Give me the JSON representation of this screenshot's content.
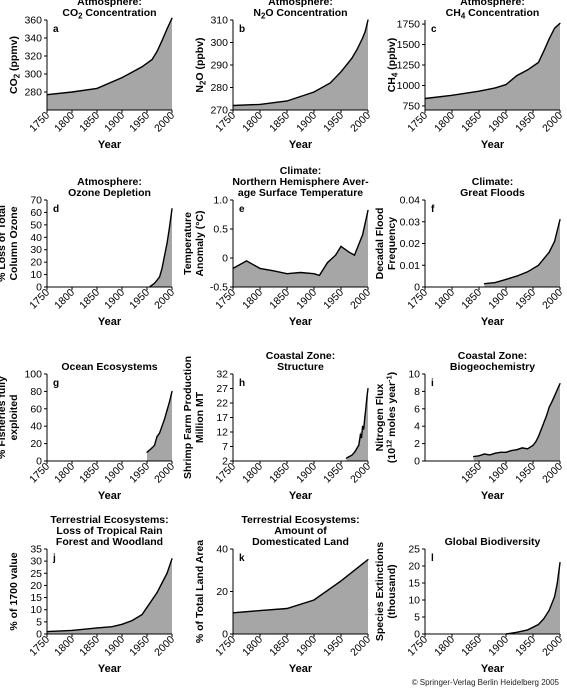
{
  "copyright": "© Springer-Verlag Berlin Heidelberg 2005",
  "colors": {
    "fill": "#a6a6a6",
    "line": "#000000"
  },
  "chart_data": [
    {
      "letter": "a",
      "type": "area",
      "title": [
        "Atmosphere:",
        "CO2 Concentration"
      ],
      "ylabel": [
        "CO2 (ppmv)"
      ],
      "xlabel": "Year",
      "ylim": [
        260,
        360
      ],
      "yticks": [
        280,
        300,
        320,
        340,
        360
      ],
      "xlim": [
        1750,
        2000
      ],
      "xticks": [
        1750,
        1800,
        1850,
        1900,
        1950,
        2000
      ],
      "x": [
        1750,
        1800,
        1850,
        1900,
        1920,
        1940,
        1960,
        1970,
        1980,
        1990,
        2000
      ],
      "y": [
        277,
        280,
        284,
        296,
        302,
        308,
        316,
        325,
        337,
        350,
        362
      ]
    },
    {
      "letter": "b",
      "type": "area",
      "title": [
        "Atmosphere:",
        "N2O Concentration"
      ],
      "ylabel": [
        "N2O (ppbv)"
      ],
      "xlabel": "Year",
      "ylim": [
        270,
        310
      ],
      "yticks": [
        270,
        280,
        290,
        300,
        310
      ],
      "xlim": [
        1750,
        2000
      ],
      "xticks": [
        1750,
        1800,
        1850,
        1900,
        1950,
        2000
      ],
      "x": [
        1750,
        1800,
        1850,
        1900,
        1930,
        1950,
        1970,
        1980,
        1990,
        1995,
        2000
      ],
      "y": [
        272,
        272.5,
        274,
        278,
        282,
        287,
        293,
        297,
        302,
        305,
        310
      ]
    },
    {
      "letter": "c",
      "type": "area",
      "title": [
        "Atmosphere:",
        "CH4 Concentration"
      ],
      "ylabel": [
        "CH4 (ppbv)"
      ],
      "xlabel": "Year",
      "ylim": [
        700,
        1800
      ],
      "yticks": [
        750,
        1000,
        1250,
        1500,
        1750
      ],
      "xlim": [
        1750,
        2000
      ],
      "xticks": [
        1750,
        1800,
        1850,
        1900,
        1950,
        2000
      ],
      "x": [
        1750,
        1800,
        1850,
        1880,
        1900,
        1920,
        1940,
        1960,
        1970,
        1980,
        1990,
        2000
      ],
      "y": [
        840,
        880,
        930,
        970,
        1010,
        1120,
        1190,
        1280,
        1420,
        1570,
        1700,
        1760
      ]
    },
    {
      "letter": "d",
      "type": "area",
      "title": [
        "Atmosphere:",
        "Ozone Depletion"
      ],
      "ylabel": [
        "% Loss of Total",
        "Column Ozone"
      ],
      "xlabel": "Year",
      "ylim": [
        0,
        70
      ],
      "yticks": [
        0,
        10,
        20,
        30,
        40,
        50,
        60,
        70
      ],
      "xlim": [
        1750,
        2000
      ],
      "xticks": [
        1750,
        1800,
        1850,
        1900,
        1950,
        2000
      ],
      "x": [
        1955,
        1965,
        1975,
        1980,
        1985,
        1990,
        1995,
        2000
      ],
      "y": [
        0,
        3,
        8,
        15,
        25,
        35,
        48,
        63
      ]
    },
    {
      "letter": "e",
      "type": "area",
      "title": [
        "Climate:",
        "Northern Hemisphere Aver-",
        "age Surface Temperature"
      ],
      "ylabel": [
        "Temperature",
        "Anomaly (°C)"
      ],
      "xlabel": "Year",
      "ylim": [
        -0.5,
        1.0
      ],
      "yticks": [
        -0.5,
        0,
        0.5,
        1.0
      ],
      "ytick_labels": [
        "-0.5",
        "0",
        "0.5",
        "1.0"
      ],
      "xlim": [
        1750,
        2000
      ],
      "xticks": [
        1750,
        1800,
        1850,
        1900,
        1950,
        2000
      ],
      "x": [
        1750,
        1775,
        1800,
        1825,
        1850,
        1875,
        1900,
        1910,
        1925,
        1940,
        1950,
        1965,
        1975,
        1990,
        2000
      ],
      "y": [
        -0.18,
        -0.05,
        -0.18,
        -0.22,
        -0.27,
        -0.25,
        -0.27,
        -0.3,
        -0.08,
        0.05,
        0.2,
        0.1,
        0.05,
        0.4,
        0.82
      ]
    },
    {
      "letter": "f",
      "type": "area",
      "title": [
        "Climate:",
        "Great Floods"
      ],
      "ylabel": [
        "Decadal Flood",
        "Frequency"
      ],
      "xlabel": "Year",
      "ylim": [
        0,
        0.04
      ],
      "yticks": [
        0,
        0.01,
        0.02,
        0.03,
        0.04
      ],
      "ytick_labels": [
        "0",
        "0.01",
        "0.02",
        "0.03",
        "0.04"
      ],
      "xlim": [
        1750,
        2000
      ],
      "xticks": [
        1750,
        1800,
        1850,
        1900,
        1950,
        2000
      ],
      "x": [
        1860,
        1880,
        1900,
        1920,
        1940,
        1960,
        1980,
        1990,
        2000
      ],
      "y": [
        0.0015,
        0.002,
        0.0035,
        0.005,
        0.007,
        0.01,
        0.016,
        0.021,
        0.031
      ]
    },
    {
      "letter": "g",
      "type": "area",
      "title": [
        "Ocean Ecosystems"
      ],
      "ylabel": [
        "% Fisheries fully",
        "exploited"
      ],
      "xlabel": "Year",
      "ylim": [
        0,
        100
      ],
      "yticks": [
        0,
        20,
        40,
        60,
        80,
        100
      ],
      "xlim": [
        1750,
        2000
      ],
      "xticks": [
        1750,
        1800,
        1850,
        1900,
        1950,
        2000
      ],
      "x": [
        1950,
        1960,
        1965,
        1970,
        1975,
        1980,
        1985,
        1990,
        1995,
        2000
      ],
      "y": [
        10,
        15,
        18,
        28,
        32,
        40,
        48,
        58,
        68,
        80
      ]
    },
    {
      "letter": "h",
      "type": "area",
      "title": [
        "Coastal Zone:",
        "Structure"
      ],
      "ylabel": [
        "Shrimp Farm Production",
        "Million MT"
      ],
      "xlabel": "Year",
      "ylim": [
        2,
        32
      ],
      "yticks": [
        2,
        7,
        12,
        17,
        22,
        27,
        32
      ],
      "xlim": [
        1750,
        2000
      ],
      "xticks": [
        1750,
        1800,
        1850,
        1900,
        1950,
        2000
      ],
      "x": [
        1960,
        1965,
        1970,
        1975,
        1980,
        1983,
        1986,
        1988,
        1990,
        1992,
        1994,
        1996,
        1998,
        2000
      ],
      "y": [
        3,
        3.5,
        4,
        5,
        6.5,
        7.5,
        11,
        10,
        14,
        13,
        17,
        20,
        24,
        27
      ]
    },
    {
      "letter": "i",
      "type": "area",
      "title": [
        "Coastal Zone:",
        "Biogeochemistry"
      ],
      "ylabel": [
        "Nitrogen Flux",
        "(10^12 moles year^-1)"
      ],
      "xlabel": "Year",
      "ylim": [
        0,
        10
      ],
      "yticks": [
        0,
        2,
        4,
        6,
        8,
        10
      ],
      "xlim": [
        1750,
        2000
      ],
      "xticks": [
        1850,
        1900,
        1950,
        2000
      ],
      "x": [
        1840,
        1850,
        1860,
        1870,
        1880,
        1890,
        1900,
        1910,
        1920,
        1930,
        1940,
        1950,
        1955,
        1960,
        1965,
        1970,
        1975,
        1980,
        1985,
        1990,
        1995,
        2000
      ],
      "y": [
        0.5,
        0.6,
        0.8,
        0.7,
        0.9,
        1.0,
        1.0,
        1.2,
        1.3,
        1.5,
        1.4,
        1.8,
        2.2,
        2.8,
        3.6,
        4.4,
        5.2,
        6.2,
        6.8,
        7.5,
        8.2,
        8.9
      ]
    },
    {
      "letter": "j",
      "type": "area",
      "title": [
        "Terrestrial Ecosystems:",
        "Loss of Tropical Rain",
        "Forest and Woodland"
      ],
      "ylabel": [
        "% of 1700 value"
      ],
      "xlabel": "Year",
      "ylim": [
        0,
        35
      ],
      "yticks": [
        0,
        5,
        10,
        15,
        20,
        25,
        30,
        35
      ],
      "xlim": [
        1750,
        2000
      ],
      "xticks": [
        1750,
        1800,
        1850,
        1900,
        1950,
        2000
      ],
      "x": [
        1750,
        1800,
        1850,
        1880,
        1900,
        1920,
        1940,
        1950,
        1960,
        1970,
        1980,
        1990,
        2000
      ],
      "y": [
        1,
        1.5,
        2.5,
        3,
        4,
        5.5,
        8,
        11,
        14,
        17,
        21,
        25,
        31
      ]
    },
    {
      "letter": "k",
      "type": "area",
      "title": [
        "Terrestrial Ecosystems:",
        "Amount of",
        "Domesticated Land"
      ],
      "ylabel": [
        "% of Total Land Area"
      ],
      "xlabel": "Year",
      "ylim": [
        0,
        40
      ],
      "yticks": [
        0,
        20,
        40
      ],
      "xlim": [
        1750,
        2000
      ],
      "xticks": [
        1750,
        1800,
        1850,
        1900,
        1950,
        2000
      ],
      "x": [
        1750,
        1800,
        1850,
        1900,
        1950,
        2000
      ],
      "y": [
        10,
        11,
        12,
        16,
        25,
        35
      ]
    },
    {
      "letter": "l",
      "type": "area",
      "title": [
        "Global Biodiversity"
      ],
      "ylabel": [
        "Species Extinctions",
        "(thousand)"
      ],
      "xlabel": "Year",
      "ylim": [
        0,
        25
      ],
      "yticks": [
        0,
        5,
        10,
        15,
        20,
        25
      ],
      "xlim": [
        1750,
        2000
      ],
      "xticks": [
        1750,
        1800,
        1850,
        1900,
        1950,
        2000
      ],
      "x": [
        1900,
        1920,
        1940,
        1960,
        1970,
        1980,
        1990,
        1995,
        2000
      ],
      "y": [
        0,
        0.5,
        1.2,
        2.8,
        4.5,
        7,
        11,
        15,
        21
      ]
    }
  ]
}
